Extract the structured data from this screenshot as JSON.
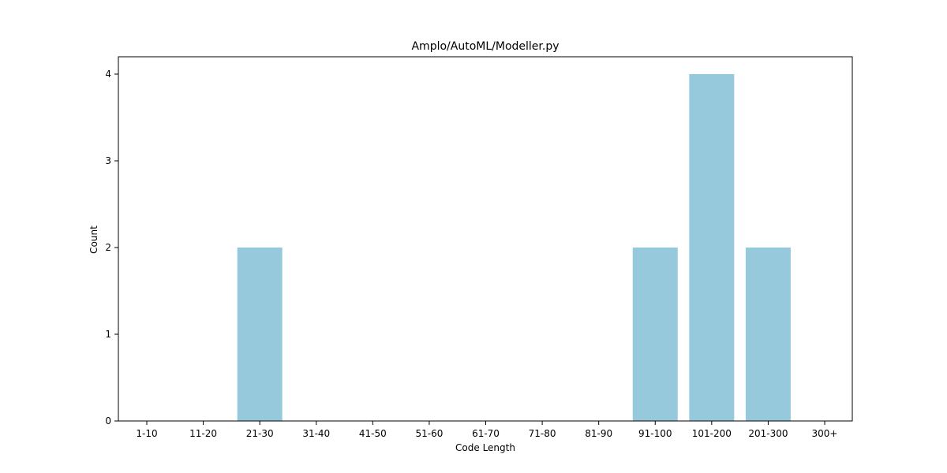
{
  "chart_data": {
    "type": "bar",
    "title": "Amplo/AutoML/Modeller.py",
    "xlabel": "Code Length",
    "ylabel": "Count",
    "categories": [
      "1-10",
      "11-20",
      "21-30",
      "31-40",
      "41-50",
      "51-60",
      "61-70",
      "71-80",
      "81-90",
      "91-100",
      "101-200",
      "201-300",
      "300+"
    ],
    "values": [
      0,
      0,
      2,
      0,
      0,
      0,
      0,
      0,
      0,
      2,
      4,
      2,
      0
    ],
    "ylim": [
      0,
      4.2
    ],
    "yticks": [
      0,
      1,
      2,
      3,
      4
    ],
    "bar_color": "#96c9dc",
    "grid": false,
    "legend": "none"
  }
}
